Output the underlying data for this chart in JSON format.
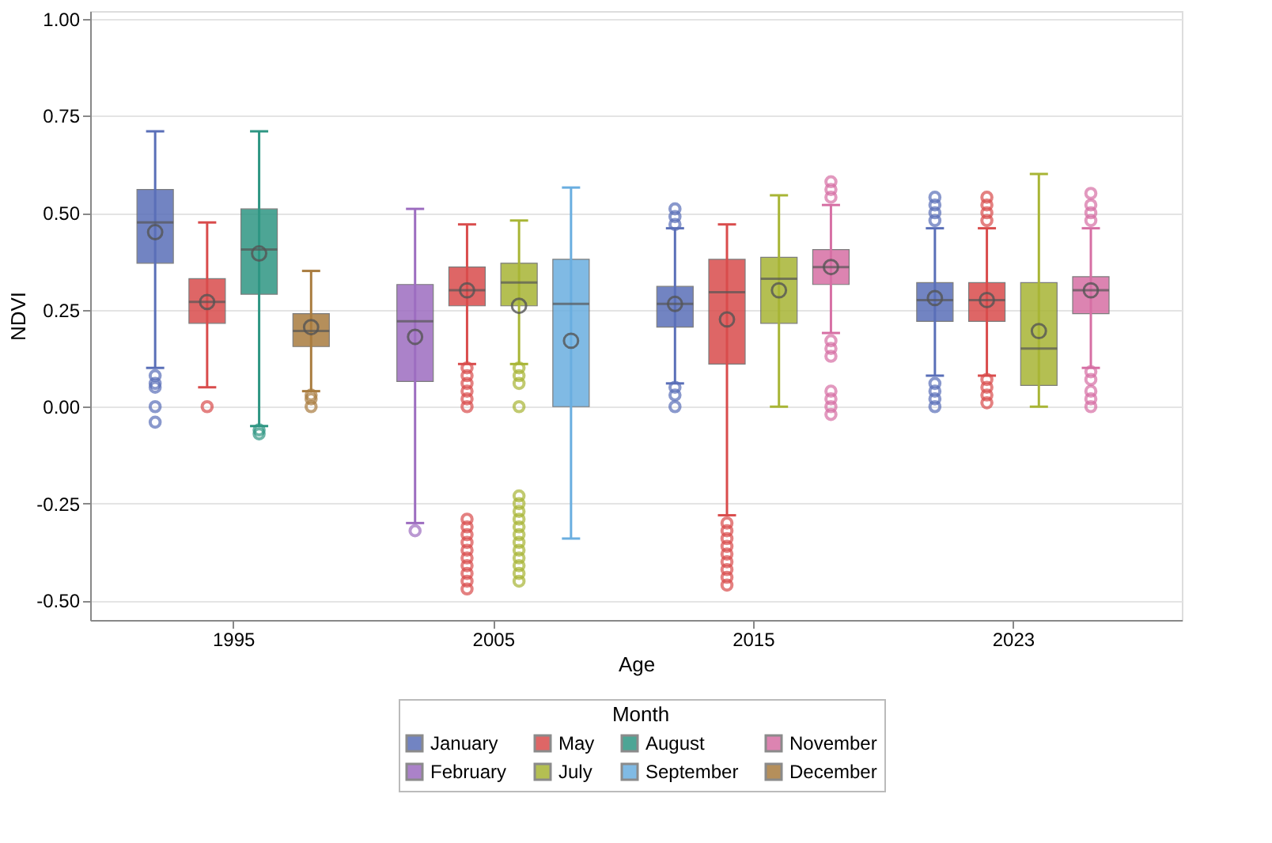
{
  "chart_data": {
    "type": "box",
    "xlabel": "Age",
    "ylabel": "NDVI",
    "legend_title": "Month",
    "legend": "bottom",
    "grid": "y",
    "categories": [
      "1995",
      "2005",
      "2015",
      "2023"
    ],
    "ylim": [
      -0.55,
      1.02
    ],
    "yticks": [
      {
        "value": -0.5,
        "label": "-0.50"
      },
      {
        "value": -0.25,
        "label": "-0.25"
      },
      {
        "value": 0,
        "label": "0.00"
      },
      {
        "value": 0.25,
        "label": "0.25"
      },
      {
        "value": 0.5,
        "label": "0.50"
      },
      {
        "value": 0.75,
        "label": "0.75"
      },
      {
        "value": 1,
        "label": "1.00"
      }
    ],
    "series": [
      {
        "name": "January",
        "color": "#5a6fb8",
        "boxes": [
          {
            "low": 0.1,
            "q1": 0.37,
            "median": 0.475,
            "q3": 0.56,
            "high": 0.71,
            "mean": 0.45,
            "outliers": [
              0.08,
              0.06,
              0.05,
              0.0,
              -0.04
            ]
          },
          null,
          {
            "low": 0.06,
            "q1": 0.205,
            "median": 0.265,
            "q3": 0.31,
            "high": 0.46,
            "mean": 0.265,
            "outliers": [
              0.47,
              0.49,
              0.51,
              0.05,
              0.03,
              0.0
            ]
          },
          {
            "low": 0.08,
            "q1": 0.22,
            "median": 0.275,
            "q3": 0.32,
            "high": 0.46,
            "mean": 0.28,
            "outliers": [
              0.48,
              0.5,
              0.52,
              0.54,
              0.06,
              0.04,
              0.02,
              0.0
            ]
          }
        ]
      },
      {
        "name": "February",
        "color": "#9d6dc0",
        "boxes": [
          null,
          {
            "low": -0.3,
            "q1": 0.065,
            "median": 0.22,
            "q3": 0.315,
            "high": 0.51,
            "mean": 0.18,
            "outliers": [
              -0.32
            ]
          },
          null,
          null
        ]
      },
      {
        "name": "May",
        "color": "#d94c4c",
        "boxes": [
          {
            "low": 0.05,
            "q1": 0.215,
            "median": 0.27,
            "q3": 0.33,
            "high": 0.475,
            "mean": 0.27,
            "outliers": [
              0.0
            ]
          },
          {
            "low": 0.11,
            "q1": 0.26,
            "median": 0.3,
            "q3": 0.36,
            "high": 0.47,
            "mean": 0.3,
            "outliers": [
              0.1,
              0.08,
              0.06,
              0.04,
              0.02,
              0.0,
              -0.29,
              -0.31,
              -0.33,
              -0.35,
              -0.37,
              -0.39,
              -0.41,
              -0.43,
              -0.45,
              -0.47
            ]
          },
          {
            "low": -0.28,
            "q1": 0.11,
            "median": 0.295,
            "q3": 0.38,
            "high": 0.47,
            "mean": 0.225,
            "outliers": [
              -0.3,
              -0.32,
              -0.34,
              -0.36,
              -0.38,
              -0.4,
              -0.42,
              -0.44,
              -0.46
            ]
          },
          {
            "low": 0.08,
            "q1": 0.22,
            "median": 0.275,
            "q3": 0.32,
            "high": 0.46,
            "mean": 0.275,
            "outliers": [
              0.48,
              0.5,
              0.52,
              0.54,
              0.07,
              0.05,
              0.03,
              0.01
            ]
          }
        ]
      },
      {
        "name": "July",
        "color": "#a8b535",
        "boxes": [
          null,
          {
            "low": 0.11,
            "q1": 0.26,
            "median": 0.32,
            "q3": 0.37,
            "high": 0.48,
            "mean": 0.26,
            "outliers": [
              0.1,
              0.08,
              0.06,
              0.0,
              -0.23,
              -0.25,
              -0.27,
              -0.29,
              -0.31,
              -0.33,
              -0.35,
              -0.37,
              -0.39,
              -0.41,
              -0.43,
              -0.45
            ]
          },
          {
            "low": 0.0,
            "q1": 0.215,
            "median": 0.33,
            "q3": 0.385,
            "high": 0.545,
            "mean": 0.3
          },
          {
            "low": 0.0,
            "q1": 0.055,
            "median": 0.15,
            "q3": 0.32,
            "high": 0.6,
            "mean": 0.195
          }
        ]
      },
      {
        "name": "August",
        "color": "#2e9683",
        "boxes": [
          {
            "low": -0.05,
            "q1": 0.29,
            "median": 0.405,
            "q3": 0.51,
            "high": 0.71,
            "mean": 0.395,
            "outliers": [
              -0.06,
              -0.07
            ]
          },
          null,
          null,
          null
        ]
      },
      {
        "name": "September",
        "color": "#6aaee0",
        "boxes": [
          null,
          {
            "low": -0.34,
            "q1": 0.0,
            "median": 0.265,
            "q3": 0.38,
            "high": 0.565,
            "mean": 0.17
          },
          null,
          null
        ]
      },
      {
        "name": "November",
        "color": "#d66fa4",
        "boxes": [
          null,
          null,
          {
            "low": 0.19,
            "q1": 0.315,
            "median": 0.36,
            "q3": 0.405,
            "high": 0.52,
            "mean": 0.36,
            "outliers": [
              0.54,
              0.56,
              0.58,
              0.17,
              0.15,
              0.13,
              0.04,
              0.02,
              0.0,
              -0.02
            ]
          },
          {
            "low": 0.1,
            "q1": 0.24,
            "median": 0.3,
            "q3": 0.335,
            "high": 0.46,
            "mean": 0.3,
            "outliers": [
              0.48,
              0.5,
              0.52,
              0.55,
              0.09,
              0.07,
              0.04,
              0.02,
              0.0
            ]
          }
        ]
      },
      {
        "name": "December",
        "color": "#a97c3f",
        "boxes": [
          {
            "low": 0.04,
            "q1": 0.155,
            "median": 0.195,
            "q3": 0.24,
            "high": 0.35,
            "mean": 0.205,
            "outliers": [
              0.03,
              0.02,
              0.0
            ]
          },
          null,
          null,
          null
        ]
      }
    ]
  }
}
